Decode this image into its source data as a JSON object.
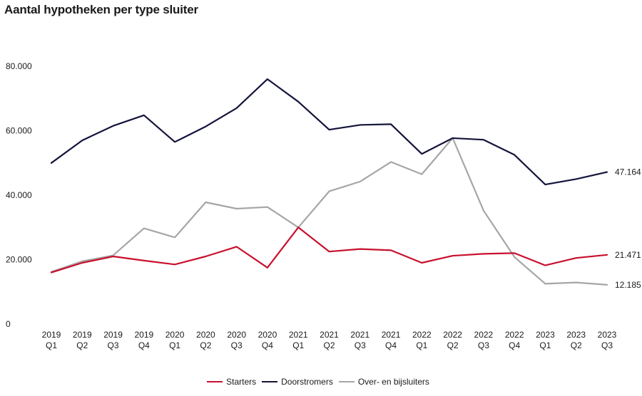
{
  "chart_data": {
    "type": "line",
    "title": "Aantal hypotheken per type sluiter",
    "xlabel": "",
    "ylabel": "",
    "ylim": [
      0,
      80000
    ],
    "yticks": [
      0,
      20000,
      40000,
      60000,
      80000
    ],
    "ytick_labels": [
      "0",
      "20.000",
      "40.000",
      "60.000",
      "80.000"
    ],
    "grid": false,
    "legend_position": "bottom-center",
    "categories": [
      [
        "2019",
        "Q1"
      ],
      [
        "2019",
        "Q2"
      ],
      [
        "2019",
        "Q3"
      ],
      [
        "2019",
        "Q4"
      ],
      [
        "2020",
        "Q1"
      ],
      [
        "2020",
        "Q2"
      ],
      [
        "2020",
        "Q3"
      ],
      [
        "2020",
        "Q4"
      ],
      [
        "2021",
        "Q1"
      ],
      [
        "2021",
        "Q2"
      ],
      [
        "2021",
        "Q3"
      ],
      [
        "2021",
        "Q4"
      ],
      [
        "2022",
        "Q1"
      ],
      [
        "2022",
        "Q2"
      ],
      [
        "2022",
        "Q3"
      ],
      [
        "2022",
        "Q4"
      ],
      [
        "2023",
        "Q1"
      ],
      [
        "2023",
        "Q2"
      ],
      [
        "2023",
        "Q3"
      ]
    ],
    "series": [
      {
        "name": "Starters",
        "color": "#c8102e",
        "values": [
          16000,
          19000,
          21000,
          19700,
          18500,
          21000,
          24000,
          17500,
          30000,
          22500,
          23300,
          22900,
          19000,
          21200,
          21800,
          22000,
          18200,
          20500,
          21471
        ],
        "end_label": "21.471"
      },
      {
        "name": "Doorstromers",
        "color": "#14143c",
        "values": [
          50000,
          57000,
          61500,
          64800,
          56500,
          61300,
          67000,
          76000,
          69000,
          60300,
          61800,
          62000,
          52800,
          57700,
          57200,
          52500,
          43300,
          45000,
          47164
        ],
        "end_label": "47.164"
      },
      {
        "name": "Over- en bijsluiters",
        "color": "#a6a6a6",
        "values": [
          16200,
          19500,
          21300,
          29700,
          26900,
          37800,
          35800,
          36300,
          30000,
          41200,
          44200,
          50300,
          46500,
          57700,
          35200,
          20800,
          12500,
          12900,
          12185
        ],
        "end_label": "12.185"
      }
    ]
  }
}
